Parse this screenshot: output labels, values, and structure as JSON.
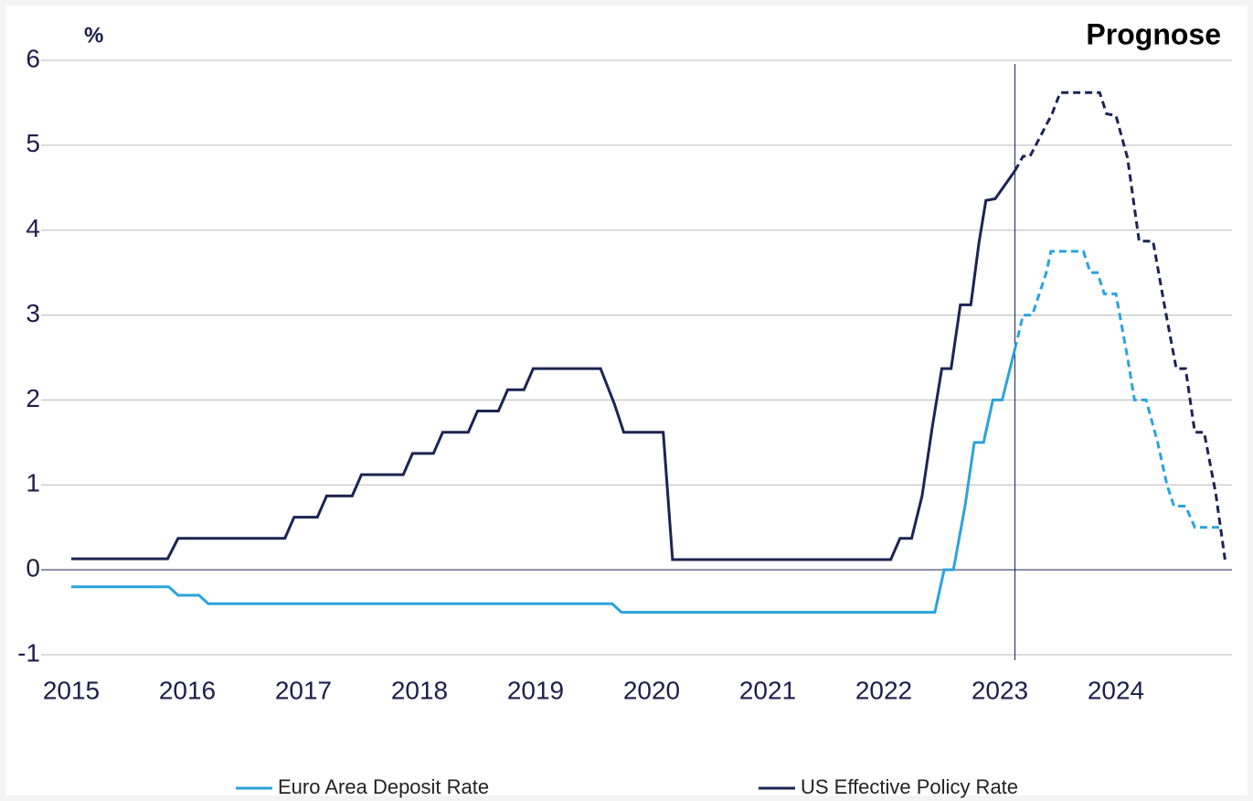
{
  "chart_data": {
    "type": "line",
    "y_label": "%",
    "annotation": "Prognose",
    "forecast_x": 2023.13,
    "xlim": [
      2015,
      2025
    ],
    "xticks": [
      2015,
      2016,
      2017,
      2018,
      2019,
      2020,
      2021,
      2022,
      2023,
      2024
    ],
    "ylim": [
      -1,
      6
    ],
    "yticks": [
      -1,
      0,
      1,
      2,
      3,
      4,
      5,
      6
    ],
    "grid": true,
    "series": [
      {
        "name": "Euro Area Deposit Rate",
        "color": "#2aa3dc",
        "x": [
          2015,
          2015.84,
          2015.92,
          2016.1,
          2016.18,
          2019.66,
          2019.74,
          2022.44,
          2022.52,
          2022.6,
          2022.7,
          2022.78,
          2022.86,
          2022.94,
          2023.02,
          2023.13,
          2023.2,
          2023.28,
          2023.4,
          2023.44,
          2023.72,
          2023.78,
          2023.84,
          2023.9,
          2024.0,
          2024.1,
          2024.16,
          2024.26,
          2024.36,
          2024.44,
          2024.5,
          2024.6,
          2024.68,
          2024.9
        ],
        "values": [
          -0.2,
          -0.2,
          -0.3,
          -0.3,
          -0.4,
          -0.4,
          -0.5,
          -0.5,
          0,
          0,
          0.75,
          1.5,
          1.5,
          2,
          2,
          2.6,
          3,
          3,
          3.5,
          3.75,
          3.75,
          3.5,
          3.5,
          3.25,
          3.25,
          2.5,
          2,
          2,
          1.5,
          1,
          0.75,
          0.75,
          0.5,
          0.5
        ]
      },
      {
        "name": "US Effective Policy Rate",
        "color": "#1c2452",
        "x": [
          2015,
          2015.83,
          2015.92,
          2016.84,
          2016.92,
          2017.12,
          2017.2,
          2017.42,
          2017.5,
          2017.86,
          2017.94,
          2018.12,
          2018.2,
          2018.42,
          2018.5,
          2018.68,
          2018.76,
          2018.9,
          2018.98,
          2019.56,
          2019.68,
          2019.76,
          2020.1,
          2020.18,
          2022.06,
          2022.14,
          2022.24,
          2022.33,
          2022.42,
          2022.5,
          2022.58,
          2022.66,
          2022.75,
          2022.82,
          2022.88,
          2022.96,
          2023.13,
          2023.2,
          2023.26,
          2023.45,
          2023.52,
          2023.86,
          2023.92,
          2024.0,
          2024.1,
          2024.2,
          2024.32,
          2024.42,
          2024.52,
          2024.6,
          2024.68,
          2024.76,
          2024.86,
          2024.94
        ],
        "values": [
          0.13,
          0.13,
          0.37,
          0.37,
          0.62,
          0.62,
          0.87,
          0.87,
          1.12,
          1.12,
          1.37,
          1.37,
          1.62,
          1.62,
          1.87,
          1.87,
          2.12,
          2.12,
          2.37,
          2.37,
          1.95,
          1.62,
          1.62,
          0.12,
          0.12,
          0.37,
          0.37,
          0.87,
          1.7,
          2.37,
          2.37,
          3.12,
          3.12,
          3.85,
          4.35,
          4.37,
          4.7,
          4.87,
          4.87,
          5.37,
          5.62,
          5.62,
          5.37,
          5.35,
          4.85,
          3.87,
          3.87,
          3.1,
          2.37,
          2.37,
          1.62,
          1.62,
          0.9,
          0.12
        ]
      }
    ]
  }
}
